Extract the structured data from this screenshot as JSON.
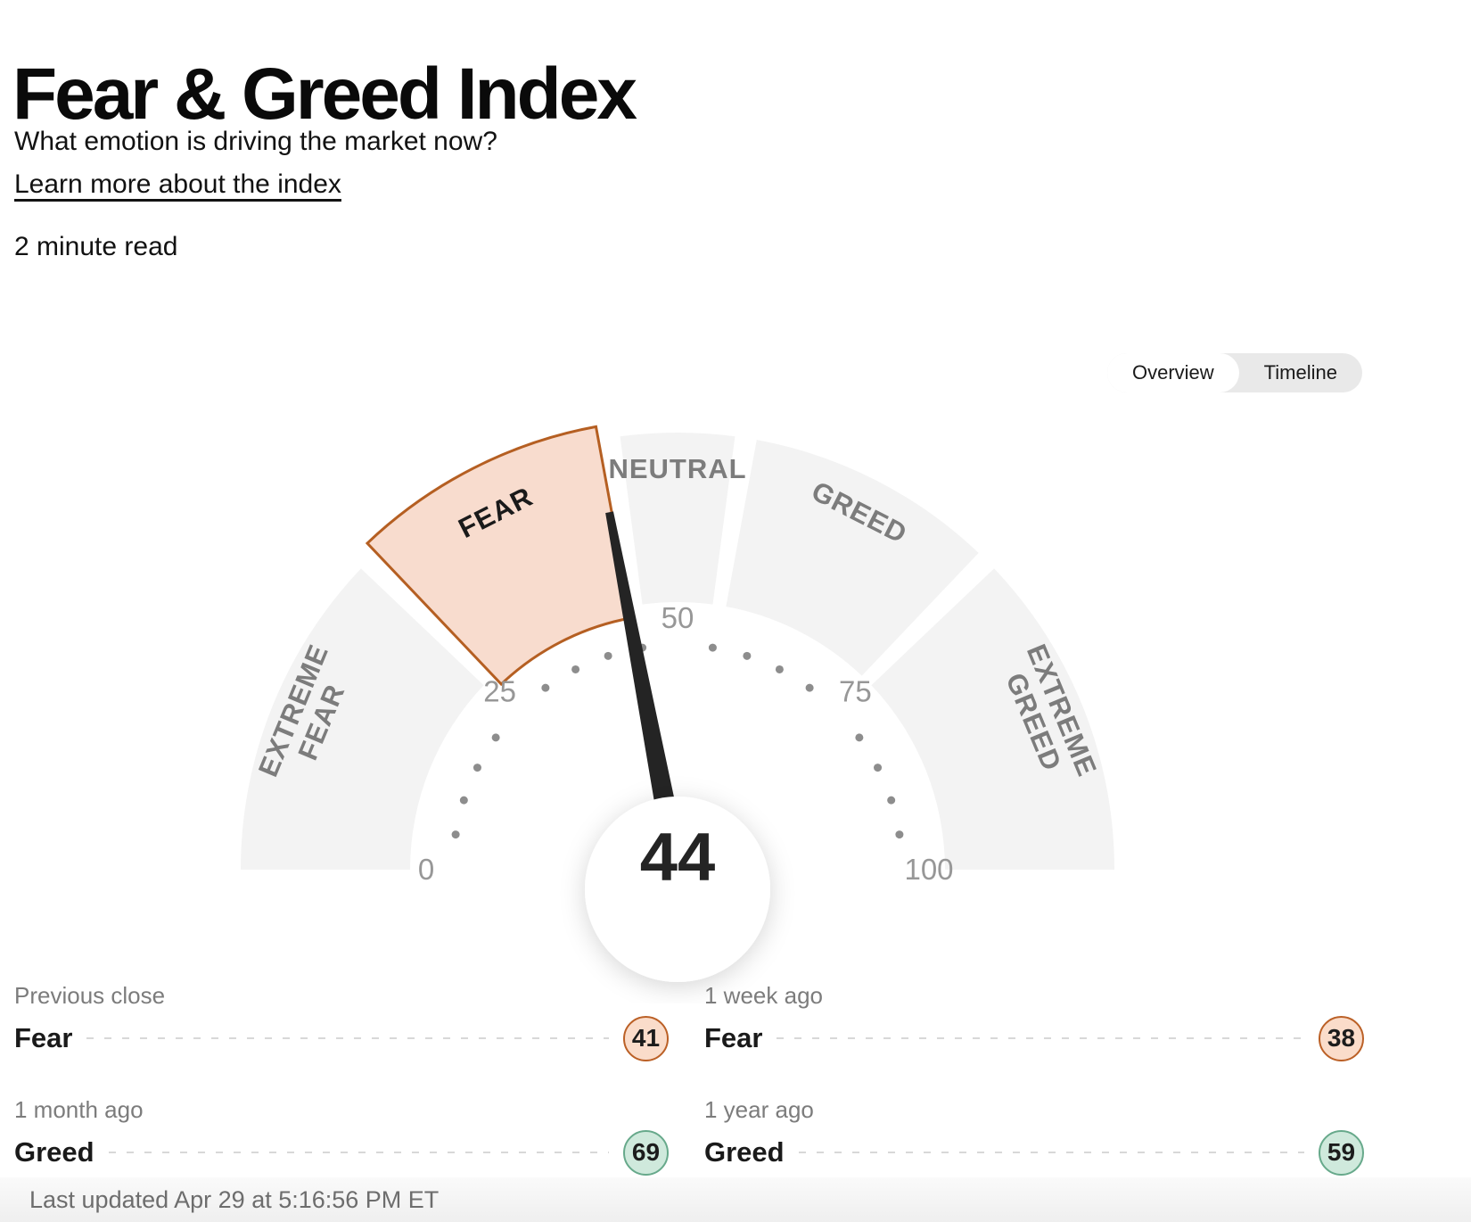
{
  "header": {
    "title": "Fear & Greed Index",
    "subtitle": "What emotion is driving the market now?",
    "learn_more": "Learn more about the index",
    "read_time": "2 minute read"
  },
  "view_toggle": {
    "options": [
      "Overview",
      "Timeline"
    ],
    "selected": "Overview"
  },
  "chart_data": {
    "type": "gauge",
    "title": "Fear & Greed Index",
    "value": 44,
    "value_sentiment": "Fear",
    "min": 0,
    "max": 100,
    "tick_labels": [
      0,
      25,
      50,
      75,
      100
    ],
    "minor_tick_step": 5,
    "segments": [
      {
        "label": "EXTREME FEAR",
        "lines": [
          "EXTREME",
          "FEAR"
        ],
        "from": 0,
        "to": 25,
        "active": false
      },
      {
        "label": "FEAR",
        "lines": [
          "FEAR"
        ],
        "from": 25,
        "to": 45,
        "active": true
      },
      {
        "label": "NEUTRAL",
        "lines": [
          "NEUTRAL"
        ],
        "from": 45,
        "to": 55,
        "active": false
      },
      {
        "label": "GREED",
        "lines": [
          "GREED"
        ],
        "from": 55,
        "to": 75,
        "active": false
      },
      {
        "label": "EXTREME GREED",
        "lines": [
          "EXTREME",
          "GREED"
        ],
        "from": 75,
        "to": 100,
        "active": false
      }
    ],
    "colors": {
      "segment_inactive_fill": "#f3f3f3",
      "segment_inactive_text": "#7c7c7c",
      "active_fill": "#f8dcce",
      "active_border": "#b55f22",
      "active_text": "#1a1a1a",
      "needle": "#242424",
      "tick_text": "#979797",
      "tick_dot": "#8d8d8d",
      "value_text": "#242424",
      "fear_fill": "#fadcca",
      "fear_border": "#bb6026",
      "greed_fill": "#cfe9dc",
      "greed_border": "#67a98b"
    }
  },
  "history": [
    {
      "period": "Previous close",
      "label": "Fear",
      "value": 41,
      "sentiment": "fear"
    },
    {
      "period": "1 week ago",
      "label": "Fear",
      "value": 38,
      "sentiment": "fear"
    },
    {
      "period": "1 month ago",
      "label": "Greed",
      "value": 69,
      "sentiment": "greed"
    },
    {
      "period": "1 year ago",
      "label": "Greed",
      "value": 59,
      "sentiment": "greed"
    }
  ],
  "footer": {
    "last_updated": "Last updated Apr 29 at 5:16:56 PM ET"
  }
}
